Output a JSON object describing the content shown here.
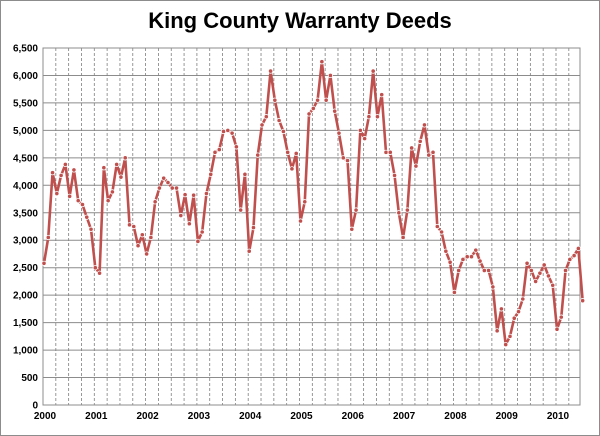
{
  "chart_data": {
    "type": "line",
    "title": "King County Warranty Deeds",
    "xlabel": "",
    "ylabel": "",
    "ylim": [
      0,
      6500
    ],
    "ytick_step": 500,
    "x_start_year": 2000,
    "x_tick_labels": [
      "2000",
      "2001",
      "2002",
      "2003",
      "2004",
      "2005",
      "2006",
      "2007",
      "2008",
      "2009",
      "2010"
    ],
    "grid": "vertical dashed monthly/quarterly, horizontal solid",
    "legend": "none",
    "series": [
      {
        "color": "#c0504d",
        "values": [
          2580,
          3050,
          4230,
          3850,
          4180,
          4380,
          3800,
          4280,
          3720,
          3650,
          3420,
          3200,
          2500,
          2400,
          4320,
          3720,
          3880,
          4380,
          4150,
          4500,
          3280,
          3250,
          2900,
          3100,
          2750,
          3050,
          3700,
          3950,
          4130,
          4050,
          3950,
          3950,
          3450,
          3830,
          3300,
          3820,
          2980,
          3150,
          3850,
          4200,
          4600,
          4650,
          4980,
          5000,
          4950,
          4700,
          3550,
          4200,
          2800,
          3230,
          4550,
          5100,
          5250,
          6080,
          5550,
          5180,
          4980,
          4600,
          4300,
          4580,
          3350,
          3700,
          5300,
          5400,
          5550,
          6250,
          5550,
          6000,
          5350,
          4950,
          4500,
          4450,
          3200,
          3550,
          5000,
          4850,
          5250,
          6080,
          5250,
          5650,
          4600,
          4600,
          4180,
          3500,
          3050,
          3550,
          4680,
          4350,
          4800,
          5100,
          4550,
          4600,
          3250,
          3150,
          2800,
          2600,
          2050,
          2450,
          2650,
          2700,
          2700,
          2820,
          2620,
          2450,
          2450,
          2150,
          1350,
          1750,
          1100,
          1250,
          1580,
          1700,
          1930,
          2580,
          2450,
          2250,
          2400,
          2550,
          2350,
          2180,
          1380,
          1600,
          2450,
          2650,
          2720,
          2850,
          1900
        ]
      }
    ]
  }
}
